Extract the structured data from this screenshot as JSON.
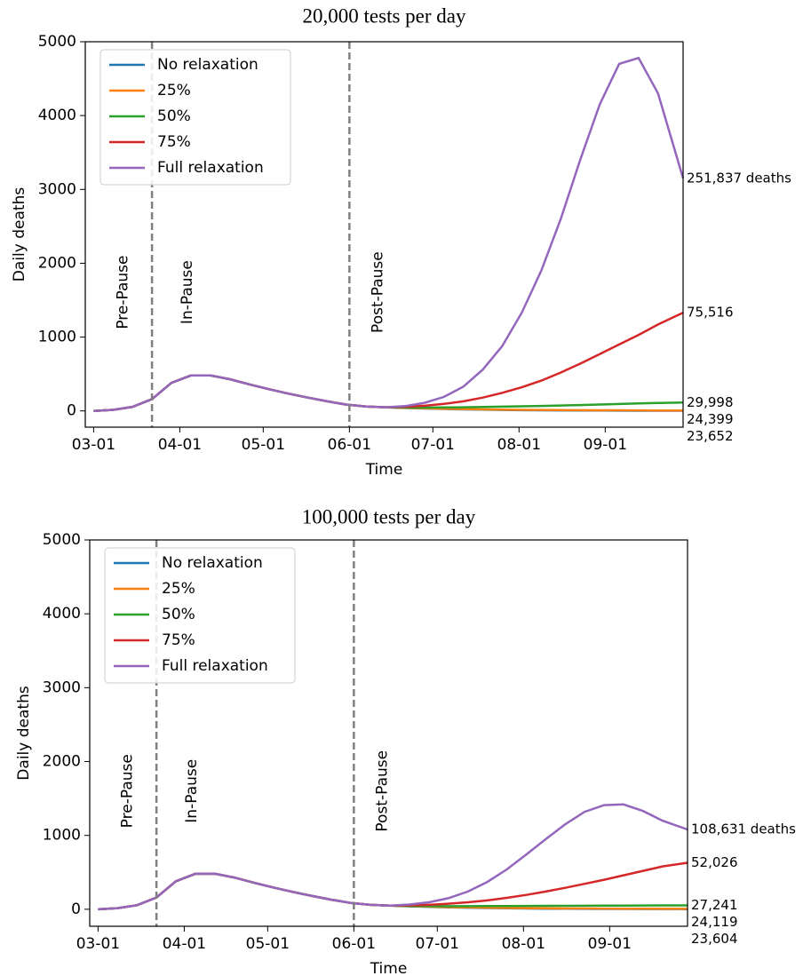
{
  "chart_data": [
    {
      "type": "line",
      "title": "20,000 tests per day",
      "x_label": "Time",
      "y_label": "Daily deaths",
      "x": [
        "03-01",
        "03-08",
        "03-15",
        "03-22",
        "03-29",
        "04-05",
        "04-12",
        "04-19",
        "04-26",
        "05-03",
        "05-10",
        "05-17",
        "05-24",
        "05-31",
        "06-07",
        "06-14",
        "06-21",
        "06-28",
        "07-05",
        "07-12",
        "07-19",
        "07-26",
        "08-02",
        "08-09",
        "08-16",
        "08-23",
        "08-30",
        "09-06",
        "09-13",
        "09-20",
        "09-29"
      ],
      "xlim": [
        "02-26",
        "09-29"
      ],
      "xticks": [
        "03-01",
        "04-01",
        "05-01",
        "06-01",
        "07-01",
        "08-01",
        "09-01"
      ],
      "ylim": [
        -220,
        5000
      ],
      "yticks": [
        0,
        1000,
        2000,
        3000,
        4000,
        5000
      ],
      "vlines": [
        "03-22",
        "06-01"
      ],
      "phases": [
        "Pre-Pause",
        "In-Pause",
        "Post-Pause"
      ],
      "legend": "upper left",
      "series": [
        {
          "name": "No relaxation",
          "color": "#1f77b4",
          "label_color": "#1a4fa8",
          "end_value": 23652,
          "end_label": "23,652",
          "values": [
            0,
            15,
            55,
            160,
            380,
            480,
            480,
            430,
            360,
            295,
            235,
            180,
            130,
            85,
            60,
            50,
            40,
            33,
            26,
            21,
            17,
            13,
            10,
            8,
            7,
            6,
            5,
            4,
            3,
            3,
            2
          ]
        },
        {
          "name": "25%",
          "color": "#ff7f0e",
          "label_color": "#f7a540",
          "end_value": 24399,
          "end_label": "24,399",
          "values": [
            0,
            15,
            55,
            160,
            380,
            480,
            480,
            430,
            360,
            295,
            235,
            180,
            130,
            85,
            60,
            50,
            42,
            36,
            30,
            25,
            21,
            18,
            15,
            13,
            11,
            10,
            9,
            8,
            7,
            6,
            6
          ]
        },
        {
          "name": "50%",
          "color": "#2ca02c",
          "label_color": "#4f7f2a",
          "end_value": 29998,
          "end_label": "29,998",
          "values": [
            0,
            15,
            55,
            160,
            380,
            480,
            480,
            430,
            360,
            295,
            235,
            180,
            130,
            85,
            60,
            50,
            45,
            45,
            47,
            50,
            54,
            58,
            63,
            68,
            74,
            80,
            87,
            94,
            101,
            107,
            113
          ]
        },
        {
          "name": "75%",
          "color": "#d62728",
          "label_color": "#e8311f",
          "end_value": 75516,
          "end_label": "75,516",
          "values": [
            0,
            15,
            55,
            160,
            380,
            480,
            480,
            430,
            360,
            295,
            235,
            180,
            130,
            85,
            60,
            50,
            55,
            70,
            95,
            130,
            180,
            245,
            320,
            410,
            520,
            640,
            770,
            900,
            1030,
            1170,
            1330
          ]
        },
        {
          "name": "Full relaxation",
          "color": "#9467bd",
          "label_color": "#9b30c8",
          "end_value": 251837,
          "end_label": "251,837 deaths",
          "values": [
            0,
            15,
            55,
            160,
            380,
            480,
            480,
            430,
            360,
            295,
            235,
            180,
            130,
            85,
            60,
            50,
            65,
            110,
            190,
            330,
            560,
            880,
            1330,
            1900,
            2600,
            3400,
            4150,
            4700,
            4780,
            4300,
            3150
          ]
        }
      ]
    },
    {
      "type": "line",
      "title": "100,000 tests per day",
      "x_label": "Time",
      "y_label": "Daily deaths",
      "x": [
        "03-01",
        "03-08",
        "03-15",
        "03-22",
        "03-29",
        "04-05",
        "04-12",
        "04-19",
        "04-26",
        "05-03",
        "05-10",
        "05-17",
        "05-24",
        "05-31",
        "06-07",
        "06-14",
        "06-21",
        "06-28",
        "07-05",
        "07-12",
        "07-19",
        "07-26",
        "08-02",
        "08-09",
        "08-16",
        "08-23",
        "08-30",
        "09-06",
        "09-13",
        "09-20",
        "09-29"
      ],
      "xlim": [
        "02-26",
        "09-29"
      ],
      "xticks": [
        "03-01",
        "04-01",
        "05-01",
        "06-01",
        "07-01",
        "08-01",
        "09-01"
      ],
      "ylim": [
        -230,
        5000
      ],
      "yticks": [
        0,
        1000,
        2000,
        3000,
        4000,
        5000
      ],
      "vlines": [
        "03-22",
        "06-01"
      ],
      "phases": [
        "Pre-Pause",
        "In-Pause",
        "Post-Pause"
      ],
      "legend": "upper left",
      "series": [
        {
          "name": "No relaxation",
          "color": "#1f77b4",
          "label_color": "#1a4fa8",
          "end_value": 23604,
          "end_label": "23,604",
          "values": [
            0,
            15,
            55,
            160,
            380,
            480,
            480,
            430,
            360,
            295,
            235,
            180,
            130,
            85,
            60,
            50,
            40,
            33,
            26,
            21,
            17,
            13,
            10,
            8,
            7,
            6,
            5,
            4,
            3,
            3,
            2
          ]
        },
        {
          "name": "25%",
          "color": "#ff7f0e",
          "label_color": "#f7a540",
          "end_value": 24119,
          "end_label": "24,119",
          "values": [
            0,
            15,
            55,
            160,
            380,
            480,
            480,
            430,
            360,
            295,
            235,
            180,
            130,
            85,
            60,
            50,
            42,
            36,
            30,
            25,
            21,
            18,
            15,
            13,
            11,
            10,
            9,
            8,
            7,
            6,
            6
          ]
        },
        {
          "name": "50%",
          "color": "#2ca02c",
          "label_color": "#4f7f2a",
          "end_value": 27241,
          "end_label": "27,241",
          "values": [
            0,
            15,
            55,
            160,
            380,
            480,
            480,
            430,
            360,
            295,
            235,
            180,
            130,
            85,
            60,
            50,
            44,
            42,
            42,
            42,
            43,
            44,
            45,
            46,
            47,
            48,
            49,
            50,
            51,
            52,
            53
          ]
        },
        {
          "name": "75%",
          "color": "#d62728",
          "label_color": "#e8311f",
          "end_value": 52026,
          "end_label": "52,026",
          "values": [
            0,
            15,
            55,
            160,
            380,
            480,
            480,
            430,
            360,
            295,
            235,
            180,
            130,
            85,
            60,
            50,
            52,
            60,
            75,
            95,
            120,
            155,
            195,
            240,
            290,
            345,
            400,
            460,
            520,
            580,
            630
          ]
        },
        {
          "name": "Full relaxation",
          "color": "#9467bd",
          "label_color": "#9b30c8",
          "end_value": 108631,
          "end_label": "108,631 deaths",
          "values": [
            0,
            15,
            55,
            160,
            380,
            480,
            480,
            430,
            360,
            295,
            235,
            180,
            130,
            85,
            60,
            50,
            65,
            95,
            150,
            240,
            370,
            540,
            740,
            950,
            1150,
            1320,
            1410,
            1420,
            1330,
            1200,
            1080
          ]
        }
      ]
    }
  ]
}
